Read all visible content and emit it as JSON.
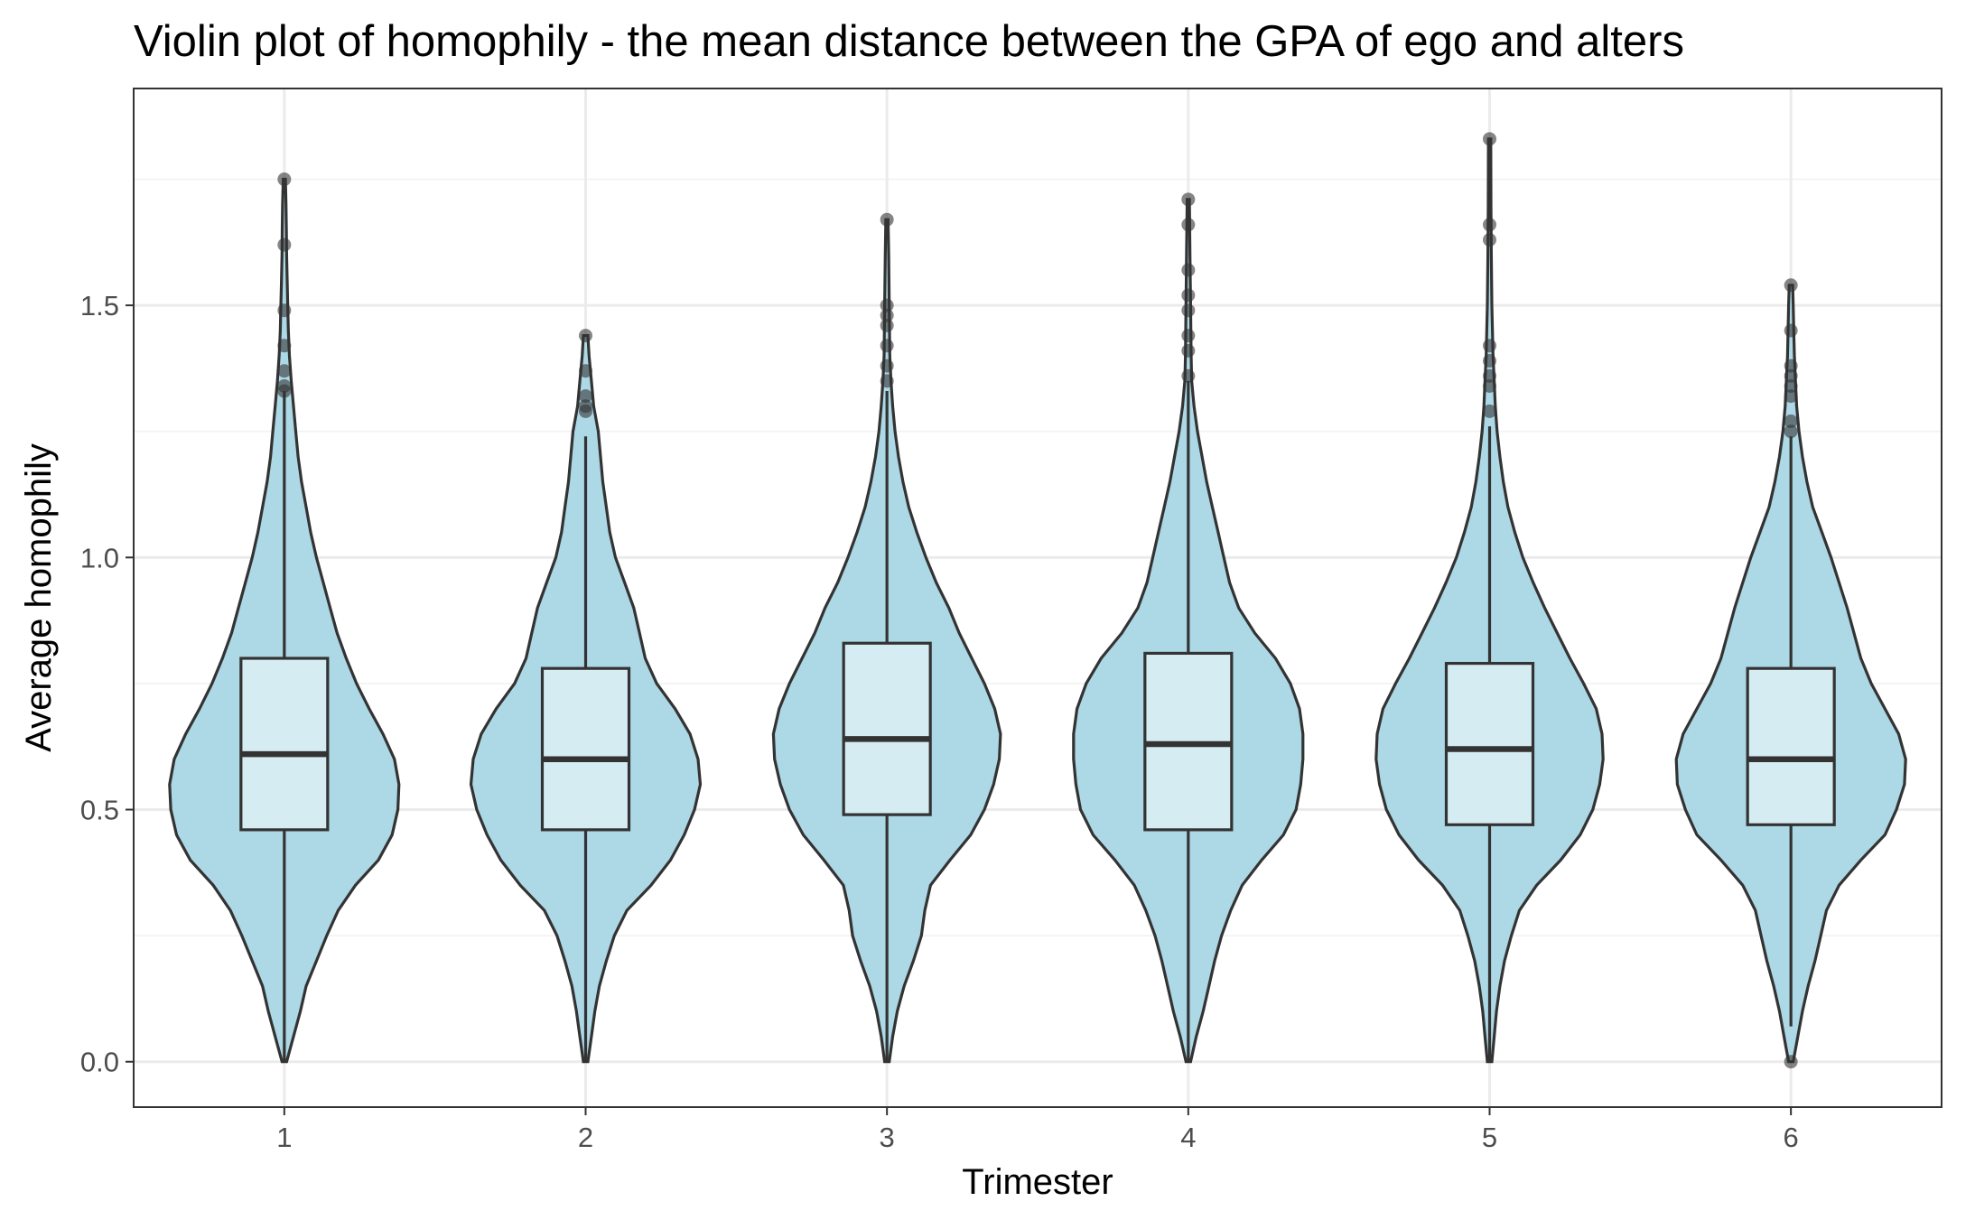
{
  "chart_data": {
    "type": "violin",
    "title": "Violin plot of homophily - the mean distance between the GPA of ego and alters",
    "xlabel": "Trimester",
    "ylabel": "Average homophily",
    "categories": [
      "1",
      "2",
      "3",
      "4",
      "5",
      "6"
    ],
    "ylim": [
      -0.09,
      1.93
    ],
    "yticks": [
      0.0,
      0.5,
      1.0,
      1.5
    ],
    "ytick_labels": [
      "0.0",
      "0.5",
      "1.0",
      "1.5"
    ],
    "grid": true,
    "legend": "none",
    "colors": {
      "violin_fill": "#add8e6",
      "box_fill": "#d6ecf3",
      "outline": "#333333"
    },
    "series": [
      {
        "category": "1",
        "box": {
          "q1": 0.46,
          "median": 0.61,
          "q3": 0.8,
          "whisker_low": 0.0,
          "whisker_high": 1.33
        },
        "outliers": [
          1.33,
          1.34,
          1.37,
          1.42,
          1.49,
          1.62,
          1.75
        ],
        "density": [
          [
            0.0,
            0.02
          ],
          [
            0.05,
            0.08
          ],
          [
            0.1,
            0.14
          ],
          [
            0.15,
            0.19
          ],
          [
            0.2,
            0.28
          ],
          [
            0.25,
            0.37
          ],
          [
            0.3,
            0.47
          ],
          [
            0.35,
            0.62
          ],
          [
            0.4,
            0.82
          ],
          [
            0.45,
            0.94
          ],
          [
            0.5,
            0.99
          ],
          [
            0.55,
            1.0
          ],
          [
            0.6,
            0.96
          ],
          [
            0.65,
            0.86
          ],
          [
            0.7,
            0.74
          ],
          [
            0.75,
            0.63
          ],
          [
            0.8,
            0.54
          ],
          [
            0.85,
            0.46
          ],
          [
            0.9,
            0.4
          ],
          [
            0.95,
            0.34
          ],
          [
            1.0,
            0.28
          ],
          [
            1.05,
            0.23
          ],
          [
            1.1,
            0.19
          ],
          [
            1.15,
            0.15
          ],
          [
            1.2,
            0.12
          ],
          [
            1.25,
            0.1
          ],
          [
            1.3,
            0.08
          ],
          [
            1.35,
            0.06
          ],
          [
            1.4,
            0.045
          ],
          [
            1.45,
            0.035
          ],
          [
            1.5,
            0.03
          ],
          [
            1.55,
            0.025
          ],
          [
            1.6,
            0.02
          ],
          [
            1.65,
            0.018
          ],
          [
            1.7,
            0.015
          ],
          [
            1.75,
            0.01
          ]
        ]
      },
      {
        "category": "2",
        "box": {
          "q1": 0.46,
          "median": 0.6,
          "q3": 0.78,
          "whisker_low": 0.0,
          "whisker_high": 1.24
        },
        "outliers": [
          1.29,
          1.3,
          1.32,
          1.37,
          1.44
        ],
        "density": [
          [
            0.0,
            0.02
          ],
          [
            0.05,
            0.05
          ],
          [
            0.1,
            0.08
          ],
          [
            0.15,
            0.12
          ],
          [
            0.2,
            0.18
          ],
          [
            0.25,
            0.25
          ],
          [
            0.3,
            0.36
          ],
          [
            0.35,
            0.57
          ],
          [
            0.4,
            0.74
          ],
          [
            0.45,
            0.86
          ],
          [
            0.5,
            0.95
          ],
          [
            0.55,
            1.0
          ],
          [
            0.6,
            0.98
          ],
          [
            0.65,
            0.91
          ],
          [
            0.7,
            0.78
          ],
          [
            0.75,
            0.62
          ],
          [
            0.8,
            0.52
          ],
          [
            0.85,
            0.47
          ],
          [
            0.9,
            0.42
          ],
          [
            0.95,
            0.34
          ],
          [
            1.0,
            0.26
          ],
          [
            1.05,
            0.21
          ],
          [
            1.1,
            0.18
          ],
          [
            1.15,
            0.15
          ],
          [
            1.2,
            0.13
          ],
          [
            1.25,
            0.11
          ],
          [
            1.3,
            0.07
          ],
          [
            1.35,
            0.05
          ],
          [
            1.4,
            0.03
          ],
          [
            1.44,
            0.02
          ]
        ]
      },
      {
        "category": "3",
        "box": {
          "q1": 0.49,
          "median": 0.64,
          "q3": 0.83,
          "whisker_low": 0.0,
          "whisker_high": 1.33
        },
        "outliers": [
          1.35,
          1.38,
          1.42,
          1.46,
          1.48,
          1.5,
          1.67
        ],
        "density": [
          [
            0.0,
            0.02
          ],
          [
            0.05,
            0.05
          ],
          [
            0.1,
            0.09
          ],
          [
            0.15,
            0.15
          ],
          [
            0.2,
            0.23
          ],
          [
            0.25,
            0.3
          ],
          [
            0.3,
            0.33
          ],
          [
            0.35,
            0.38
          ],
          [
            0.4,
            0.55
          ],
          [
            0.45,
            0.73
          ],
          [
            0.5,
            0.85
          ],
          [
            0.55,
            0.93
          ],
          [
            0.6,
            0.98
          ],
          [
            0.65,
            0.99
          ],
          [
            0.7,
            0.94
          ],
          [
            0.75,
            0.85
          ],
          [
            0.8,
            0.74
          ],
          [
            0.85,
            0.63
          ],
          [
            0.9,
            0.54
          ],
          [
            0.95,
            0.43
          ],
          [
            1.0,
            0.34
          ],
          [
            1.05,
            0.26
          ],
          [
            1.1,
            0.19
          ],
          [
            1.15,
            0.14
          ],
          [
            1.2,
            0.1
          ],
          [
            1.25,
            0.07
          ],
          [
            1.3,
            0.05
          ],
          [
            1.35,
            0.035
          ],
          [
            1.4,
            0.025
          ],
          [
            1.5,
            0.02
          ],
          [
            1.6,
            0.015
          ],
          [
            1.67,
            0.01
          ]
        ]
      },
      {
        "category": "4",
        "box": {
          "q1": 0.46,
          "median": 0.63,
          "q3": 0.81,
          "whisker_low": 0.0,
          "whisker_high": 1.35
        },
        "outliers": [
          1.36,
          1.41,
          1.44,
          1.49,
          1.52,
          1.57,
          1.66,
          1.71
        ],
        "density": [
          [
            0.0,
            0.02
          ],
          [
            0.05,
            0.07
          ],
          [
            0.1,
            0.13
          ],
          [
            0.15,
            0.18
          ],
          [
            0.2,
            0.23
          ],
          [
            0.25,
            0.29
          ],
          [
            0.3,
            0.37
          ],
          [
            0.35,
            0.47
          ],
          [
            0.4,
            0.64
          ],
          [
            0.45,
            0.83
          ],
          [
            0.5,
            0.94
          ],
          [
            0.55,
            0.98
          ],
          [
            0.6,
            1.0
          ],
          [
            0.65,
            1.0
          ],
          [
            0.7,
            0.97
          ],
          [
            0.75,
            0.89
          ],
          [
            0.8,
            0.76
          ],
          [
            0.85,
            0.58
          ],
          [
            0.9,
            0.44
          ],
          [
            0.95,
            0.36
          ],
          [
            1.0,
            0.31
          ],
          [
            1.05,
            0.26
          ],
          [
            1.1,
            0.21
          ],
          [
            1.15,
            0.16
          ],
          [
            1.2,
            0.12
          ],
          [
            1.25,
            0.08
          ],
          [
            1.3,
            0.05
          ],
          [
            1.35,
            0.03
          ],
          [
            1.4,
            0.025
          ],
          [
            1.5,
            0.02
          ],
          [
            1.6,
            0.015
          ],
          [
            1.71,
            0.01
          ]
        ]
      },
      {
        "category": "5",
        "box": {
          "q1": 0.47,
          "median": 0.62,
          "q3": 0.79,
          "whisker_low": 0.0,
          "whisker_high": 1.26
        },
        "outliers": [
          1.29,
          1.34,
          1.36,
          1.39,
          1.42,
          1.63,
          1.66,
          1.83
        ],
        "density": [
          [
            0.0,
            0.02
          ],
          [
            0.05,
            0.04
          ],
          [
            0.1,
            0.06
          ],
          [
            0.15,
            0.09
          ],
          [
            0.2,
            0.13
          ],
          [
            0.25,
            0.19
          ],
          [
            0.3,
            0.26
          ],
          [
            0.35,
            0.41
          ],
          [
            0.4,
            0.62
          ],
          [
            0.45,
            0.79
          ],
          [
            0.5,
            0.9
          ],
          [
            0.55,
            0.96
          ],
          [
            0.6,
            0.99
          ],
          [
            0.65,
            0.98
          ],
          [
            0.7,
            0.93
          ],
          [
            0.75,
            0.82
          ],
          [
            0.8,
            0.7
          ],
          [
            0.85,
            0.59
          ],
          [
            0.9,
            0.48
          ],
          [
            0.95,
            0.38
          ],
          [
            1.0,
            0.29
          ],
          [
            1.05,
            0.22
          ],
          [
            1.1,
            0.16
          ],
          [
            1.15,
            0.12
          ],
          [
            1.2,
            0.09
          ],
          [
            1.25,
            0.065
          ],
          [
            1.3,
            0.05
          ],
          [
            1.35,
            0.04
          ],
          [
            1.4,
            0.03
          ],
          [
            1.5,
            0.02
          ],
          [
            1.6,
            0.015
          ],
          [
            1.7,
            0.012
          ],
          [
            1.83,
            0.01
          ]
        ]
      },
      {
        "category": "6",
        "box": {
          "q1": 0.47,
          "median": 0.6,
          "q3": 0.78,
          "whisker_low": 0.07,
          "whisker_high": 1.24
        },
        "outliers": [
          0.0,
          1.25,
          1.27,
          1.32,
          1.34,
          1.36,
          1.38,
          1.45,
          1.54
        ],
        "density": [
          [
            0.0,
            0.02
          ],
          [
            0.05,
            0.06
          ],
          [
            0.1,
            0.1
          ],
          [
            0.15,
            0.15
          ],
          [
            0.2,
            0.21
          ],
          [
            0.25,
            0.26
          ],
          [
            0.3,
            0.31
          ],
          [
            0.35,
            0.42
          ],
          [
            0.4,
            0.61
          ],
          [
            0.45,
            0.82
          ],
          [
            0.5,
            0.92
          ],
          [
            0.55,
            0.99
          ],
          [
            0.6,
            1.0
          ],
          [
            0.65,
            0.94
          ],
          [
            0.7,
            0.82
          ],
          [
            0.75,
            0.7
          ],
          [
            0.8,
            0.61
          ],
          [
            0.85,
            0.55
          ],
          [
            0.9,
            0.49
          ],
          [
            0.95,
            0.42
          ],
          [
            1.0,
            0.35
          ],
          [
            1.05,
            0.27
          ],
          [
            1.1,
            0.19
          ],
          [
            1.15,
            0.14
          ],
          [
            1.2,
            0.1
          ],
          [
            1.25,
            0.07
          ],
          [
            1.3,
            0.05
          ],
          [
            1.35,
            0.04
          ],
          [
            1.4,
            0.03
          ],
          [
            1.45,
            0.025
          ],
          [
            1.5,
            0.02
          ],
          [
            1.54,
            0.015
          ]
        ]
      }
    ]
  }
}
